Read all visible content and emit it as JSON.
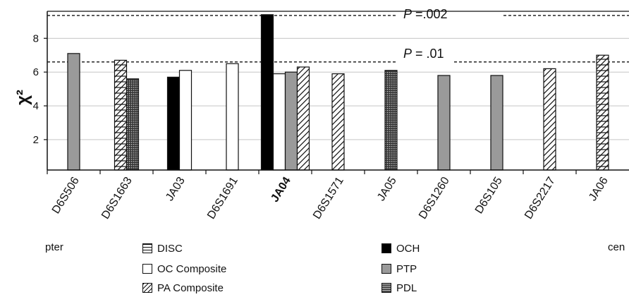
{
  "chart_data": {
    "type": "bar",
    "ylabel": "χ²",
    "ylim": [
      0.2,
      9.6
    ],
    "yticks": [
      2,
      4,
      6,
      8
    ],
    "grid": true,
    "categories": [
      {
        "label": "D6S506",
        "bold": false
      },
      {
        "label": "D6S1663",
        "bold": false
      },
      {
        "label": "JA03",
        "bold": false
      },
      {
        "label": "D6S1691",
        "bold": false
      },
      {
        "label": "JA04",
        "bold": true
      },
      {
        "label": "D6S1571",
        "bold": false
      },
      {
        "label": "JA05",
        "bold": false
      },
      {
        "label": "D6S1260",
        "bold": false
      },
      {
        "label": "D6S105",
        "bold": false
      },
      {
        "label": "D6S2217",
        "bold": false
      },
      {
        "label": "JA06",
        "bold": false
      }
    ],
    "series": [
      {
        "name": "DISC",
        "pattern": "disc",
        "points": [
          {
            "x": "D6S1663",
            "y": 6.7
          },
          {
            "x": "JA06",
            "y": 7.0
          }
        ]
      },
      {
        "name": "OC Composite",
        "pattern": "white",
        "points": [
          {
            "x": "JA03",
            "y": 6.1
          },
          {
            "x": "D6S1691",
            "y": 6.5
          },
          {
            "x": "JA04",
            "y": 5.9
          }
        ]
      },
      {
        "name": "PA Composite",
        "pattern": "diag",
        "points": [
          {
            "x": "JA04",
            "y": 6.3
          },
          {
            "x": "D6S1571",
            "y": 5.9
          },
          {
            "x": "D6S2217",
            "y": 6.2
          }
        ]
      },
      {
        "name": "OCH",
        "pattern": "black",
        "points": [
          {
            "x": "JA03",
            "y": 5.7
          },
          {
            "x": "JA04",
            "y": 9.4
          }
        ]
      },
      {
        "name": "PTP",
        "pattern": "gray",
        "points": [
          {
            "x": "D6S506",
            "y": 7.1
          },
          {
            "x": "JA04",
            "y": 6.0
          },
          {
            "x": "D6S1260",
            "y": 5.8
          },
          {
            "x": "D6S105",
            "y": 5.8
          }
        ]
      },
      {
        "name": "PDL",
        "pattern": "dots",
        "points": [
          {
            "x": "D6S1663",
            "y": 5.6
          },
          {
            "x": "JA05",
            "y": 6.1
          }
        ]
      }
    ],
    "bar_groups": [
      [
        "D6S506",
        "PTP"
      ],
      [
        "D6S1663",
        "DISC",
        "PDL"
      ],
      [
        "JA03",
        "OCH",
        "OC Composite"
      ],
      [
        "D6S1691",
        "OC Composite"
      ],
      [
        "JA04",
        "OCH",
        "OC Composite",
        "PTP",
        "PA Composite"
      ],
      [
        "D6S1571",
        "PA Composite"
      ],
      [
        "JA05",
        "PDL"
      ],
      [
        "D6S1260",
        "PTP"
      ],
      [
        "D6S105",
        "PTP"
      ],
      [
        "D6S2217",
        "PA Composite"
      ],
      [
        "JA06",
        "DISC"
      ]
    ],
    "thresholds": [
      {
        "label_p": "P",
        "label_rest": " =.002",
        "y": 9.35
      },
      {
        "label_p": "P",
        "label_rest": " = .01",
        "y": 6.6
      }
    ],
    "legend_placement": "bottom"
  },
  "left_label": "pter",
  "right_label": "cen"
}
